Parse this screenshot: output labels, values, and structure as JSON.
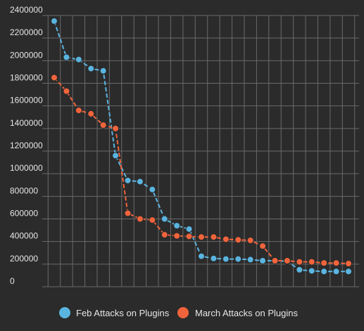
{
  "chart_data": {
    "type": "line",
    "title": "",
    "xlabel": "",
    "ylabel": "",
    "ylim": [
      0,
      2400000
    ],
    "yticks": [
      0,
      200000,
      400000,
      600000,
      800000,
      1000000,
      1200000,
      1400000,
      1600000,
      1800000,
      2000000,
      2200000,
      2400000
    ],
    "grid": true,
    "legend": "bottom",
    "x": [
      1,
      2,
      3,
      4,
      5,
      6,
      7,
      8,
      9,
      10,
      11,
      12,
      13,
      14,
      15,
      16,
      17,
      18,
      19,
      20,
      21,
      22,
      23,
      24,
      25
    ],
    "series": [
      {
        "name": "Feb Attacks on Plugins",
        "color": "#5ab4e0",
        "values": [
          2350000,
          2030000,
          2010000,
          1930000,
          1910000,
          1160000,
          940000,
          930000,
          860000,
          600000,
          540000,
          510000,
          270000,
          250000,
          245000,
          245000,
          240000,
          230000,
          230000,
          225000,
          150000,
          140000,
          135000,
          135000,
          135000
        ]
      },
      {
        "name": "March Attacks on Plugins",
        "color": "#f0643c",
        "values": [
          1850000,
          1730000,
          1560000,
          1530000,
          1430000,
          1400000,
          650000,
          600000,
          590000,
          460000,
          450000,
          445000,
          440000,
          440000,
          420000,
          415000,
          410000,
          360000,
          230000,
          230000,
          220000,
          220000,
          210000,
          210000,
          205000
        ]
      }
    ]
  },
  "legend": [
    {
      "label": "Feb Attacks on Plugins",
      "color": "#5ab4e0"
    },
    {
      "label": "March Attacks on Plugins",
      "color": "#f0643c"
    }
  ]
}
